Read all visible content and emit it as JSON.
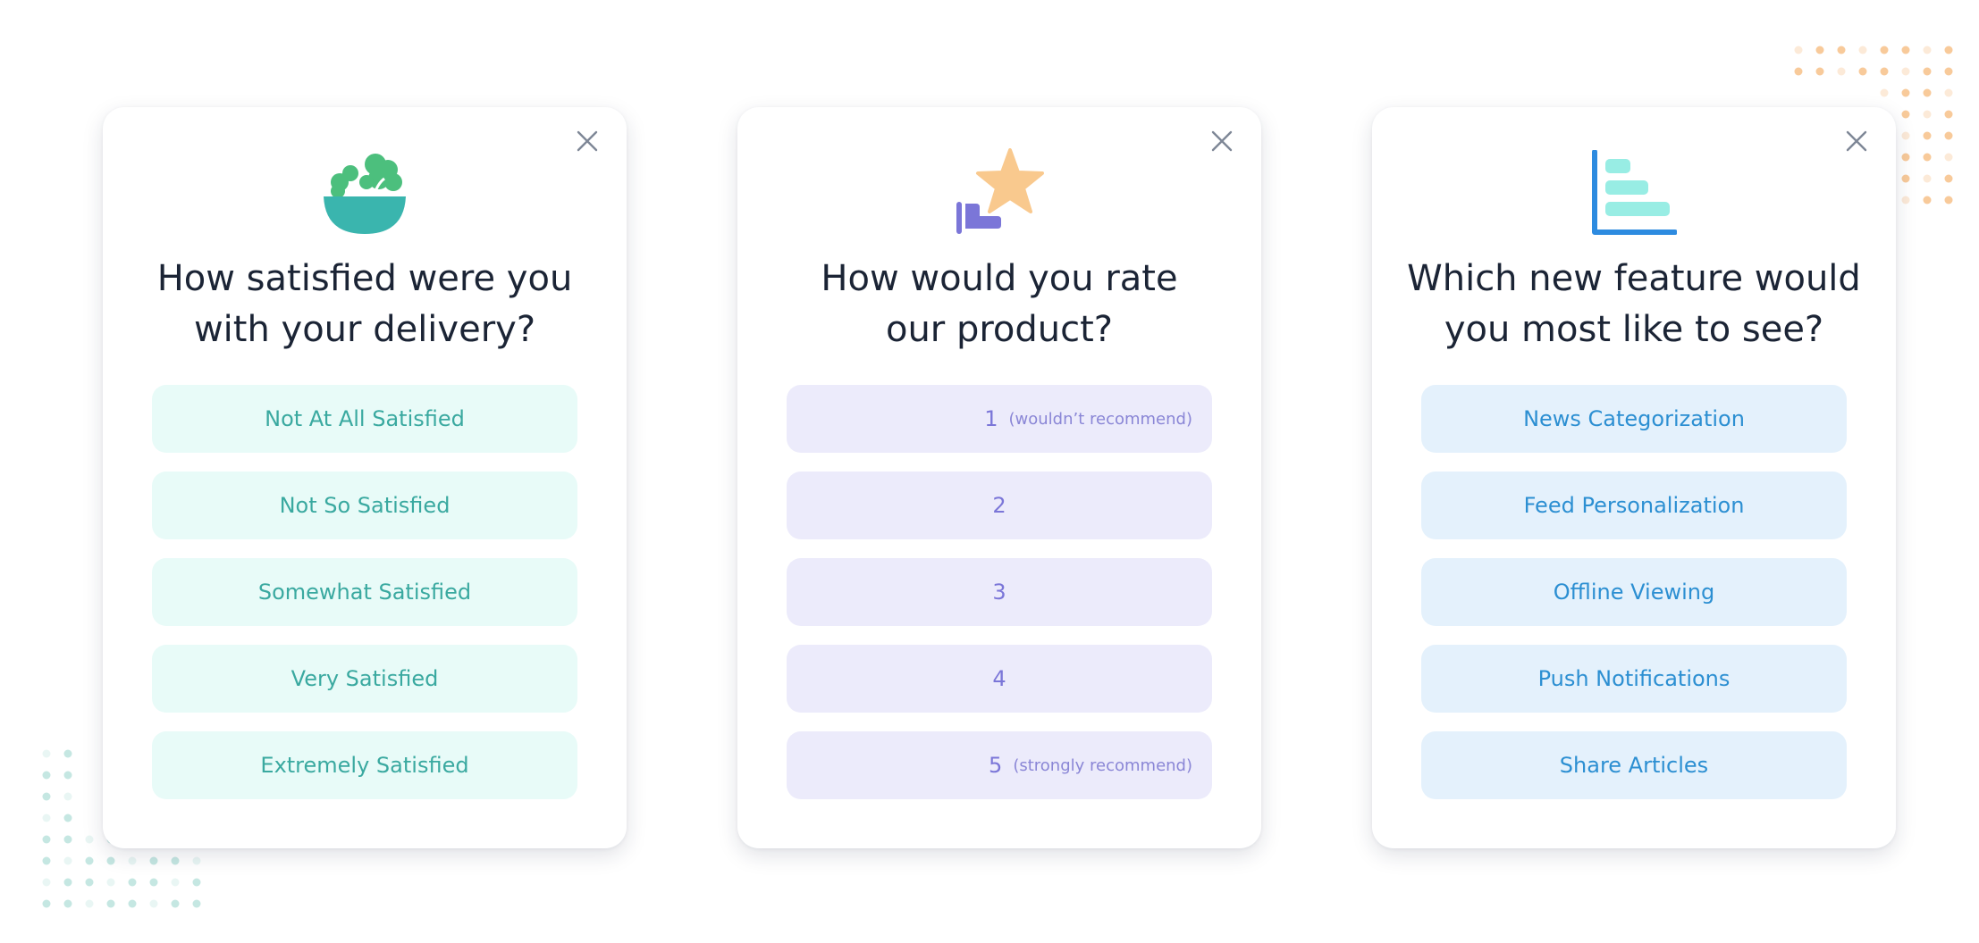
{
  "decoration": {
    "dot_colors": [
      "#f7c48f",
      "#bfe4df"
    ]
  },
  "surveys": [
    {
      "icon": "salad-bowl-icon",
      "question": "How satisfied were you\nwith your delivery?",
      "options": [
        {
          "label": "Not At All Satisfied"
        },
        {
          "label": "Not So Satisfied"
        },
        {
          "label": "Somewhat Satisfied"
        },
        {
          "label": "Very Satisfied"
        },
        {
          "label": "Extremely Satisfied"
        }
      ],
      "accent": "#3aa9a0"
    },
    {
      "icon": "star-rating-icon",
      "question": "How would you rate\nour product?",
      "options": [
        {
          "num": "1",
          "note": "(wouldn’t recommend)"
        },
        {
          "num": "2",
          "note": ""
        },
        {
          "num": "3",
          "note": ""
        },
        {
          "num": "4",
          "note": ""
        },
        {
          "num": "5",
          "note": "(strongly recommend)"
        }
      ],
      "accent": "#7b76d8"
    },
    {
      "icon": "bar-chart-icon",
      "question": "Which new feature would\nyou most like to see?",
      "options": [
        {
          "label": "News Categorization"
        },
        {
          "label": "Feed Personalization"
        },
        {
          "label": "Offline Viewing"
        },
        {
          "label": "Push Notifications"
        },
        {
          "label": "Share Articles"
        }
      ],
      "accent": "#2c8fd2"
    }
  ]
}
